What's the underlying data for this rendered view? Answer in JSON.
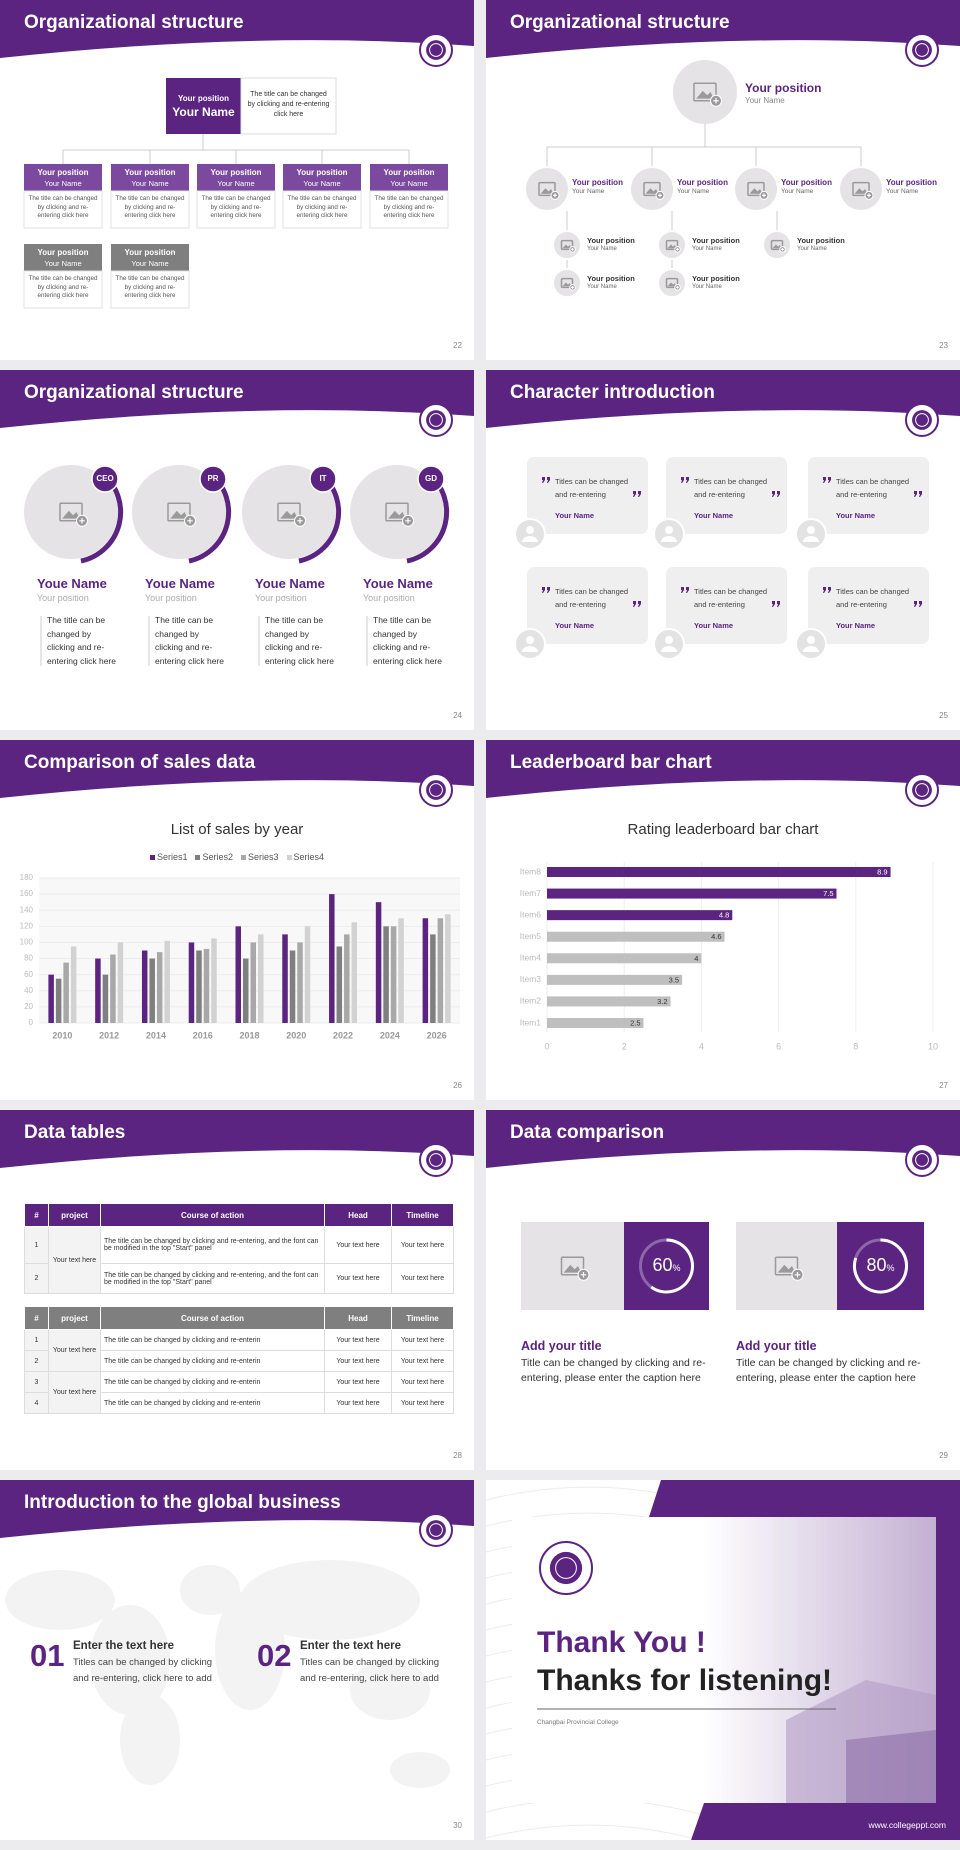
{
  "slides": [
    {
      "number": "22",
      "title": "Organizational structure",
      "top": {
        "position": "Your position",
        "name": "Your Name",
        "text": "The title can be changed by clicking and re-entering click here"
      },
      "boxes": [
        {
          "position": "Your position",
          "name": "Your Name",
          "text": "The title can be changed by clicking and re-entering click here"
        },
        {
          "position": "Your position",
          "name": "Your Name",
          "text": "The title can be changed by clicking and re-entering click here"
        },
        {
          "position": "Your position",
          "name": "Your Name",
          "text": "The title can be changed by clicking and re-entering click here"
        },
        {
          "position": "Your position",
          "name": "Your Name",
          "text": "The title can be changed by clicking and re-entering click here"
        },
        {
          "position": "Your position",
          "name": "Your Name",
          "text": "The title can be changed by clicking and re-entering click here"
        },
        {
          "position": "Your position",
          "name": "Your Name",
          "text": "The title can be changed by clicking and re-entering click here"
        },
        {
          "position": "Your position",
          "name": "Your Name",
          "text": "The title can be changed by clicking and re-entering click here"
        }
      ]
    },
    {
      "number": "23",
      "title": "Organizational structure",
      "top": {
        "position": "Your position",
        "name": "Your Name"
      },
      "nodes": [
        {
          "position": "Your position",
          "name": "Your Name"
        },
        {
          "position": "Your position",
          "name": "Your Name"
        },
        {
          "position": "Your position",
          "name": "Your Name"
        },
        {
          "position": "Your position",
          "name": "Your Name"
        }
      ],
      "subnodes": [
        {
          "position": "Your position",
          "name": "Your Name"
        },
        {
          "position": "Your position",
          "name": "Your Name"
        },
        {
          "position": "Your position",
          "name": "Your Name"
        },
        {
          "position": "Your position",
          "name": "Your Name"
        },
        {
          "position": "Your position",
          "name": "Your Name"
        }
      ]
    },
    {
      "number": "24",
      "title": "Organizational structure",
      "people": [
        {
          "tag": "CEO",
          "name": "Youe Name",
          "position": "Your position",
          "text": "The title can be changed by clicking and re-entering click here"
        },
        {
          "tag": "PR",
          "name": "Youe Name",
          "position": "Your position",
          "text": "The title can be changed by clicking and re-entering click here"
        },
        {
          "tag": "IT",
          "name": "Youe Name",
          "position": "Your position",
          "text": "The title can be changed by clicking and re-entering click here"
        },
        {
          "tag": "GD",
          "name": "Youe Name",
          "position": "Your position",
          "text": "The title can be changed by clicking and re-entering click here"
        }
      ]
    },
    {
      "number": "25",
      "title": "Character introduction",
      "cards": [
        {
          "text": "Titles can be changed and re-entering",
          "name": "Your Name"
        },
        {
          "text": "Titles can be changed and re-entering",
          "name": "Your Name"
        },
        {
          "text": "Titles can be changed and re-entering",
          "name": "Your Name"
        },
        {
          "text": "Titles can be changed and re-entering",
          "name": "Your Name"
        },
        {
          "text": "Titles can be changed and re-entering",
          "name": "Your Name"
        },
        {
          "text": "Titles can be changed and re-entering",
          "name": "Your Name"
        }
      ]
    },
    {
      "number": "26",
      "title": "Comparison of sales data",
      "chart": {
        "type": "bar",
        "title": "List of sales by year",
        "categories": [
          "2010",
          "2012",
          "2014",
          "2016",
          "2018",
          "2020",
          "2022",
          "2024",
          "2026"
        ],
        "series": [
          {
            "name": "Series1",
            "color": "#5b2480",
            "values": [
              60,
              80,
              90,
              100,
              120,
              110,
              160,
              150,
              130
            ]
          },
          {
            "name": "Series2",
            "color": "#7f7f7f",
            "values": [
              55,
              60,
              80,
              90,
              80,
              90,
              95,
              120,
              110
            ]
          },
          {
            "name": "Series3",
            "color": "#a8a8a8",
            "values": [
              75,
              85,
              88,
              92,
              100,
              100,
              110,
              120,
              130
            ]
          },
          {
            "name": "Series4",
            "color": "#d2d2d2",
            "values": [
              95,
              100,
              102,
              105,
              110,
              120,
              125,
              130,
              135
            ]
          }
        ],
        "ylim": [
          0,
          180
        ],
        "yticks": [
          0,
          20,
          40,
          60,
          80,
          100,
          120,
          140,
          160,
          180
        ],
        "grid": true
      }
    },
    {
      "number": "27",
      "title": "Leaderboard bar chart",
      "chart": {
        "type": "hbar",
        "title": "Rating leaderboard bar chart",
        "categories": [
          "Item1",
          "Item2",
          "Item3",
          "Item4",
          "Item5",
          "Item6",
          "Item7",
          "Item8"
        ],
        "values": [
          2.5,
          3.2,
          3.5,
          4,
          4.6,
          4.8,
          7.5,
          8.9
        ],
        "colors": [
          "#bfbfbf",
          "#bfbfbf",
          "#bfbfbf",
          "#bfbfbf",
          "#bfbfbf",
          "#5b2480",
          "#5b2480",
          "#5b2480"
        ],
        "xlim": [
          0,
          10
        ],
        "xticks": [
          0,
          2,
          4,
          6,
          8,
          10
        ],
        "grid": true
      }
    },
    {
      "number": "28",
      "title": "Data tables",
      "tables": [
        {
          "header": [
            "#",
            "project",
            "Course of action",
            "Head",
            "Timeline"
          ],
          "groups": [
            {
              "project": "Your text here",
              "rows": [
                [
                  "1",
                  "The title can be changed by clicking and re-entering, and the font can be modified in the top \"Start\" panel",
                  "Your text here",
                  "Your text here"
                ],
                [
                  "2",
                  "The title can be changed by clicking and re-entering, and the font can be modified in the top \"Start\" panel",
                  "Your text here",
                  "Your text here"
                ]
              ]
            }
          ]
        },
        {
          "header": [
            "#",
            "project",
            "Course of action",
            "Head",
            "Timeline"
          ],
          "groups": [
            {
              "project": "Your text here",
              "rows": [
                [
                  "1",
                  "The title can be changed by clicking and re-enterin",
                  "Your text here",
                  "Your text here"
                ],
                [
                  "2",
                  "The title can be changed by clicking and re-enterin",
                  "Your text here",
                  "Your text here"
                ]
              ]
            },
            {
              "project": "Your text here",
              "rows": [
                [
                  "3",
                  "The title can be changed by clicking and re-enterin",
                  "Your text here",
                  "Your text here"
                ],
                [
                  "4",
                  "The title can be changed by clicking and re-enterin",
                  "Your text here",
                  "Your text here"
                ]
              ]
            }
          ]
        }
      ]
    },
    {
      "number": "29",
      "title": "Data comparison",
      "items": [
        {
          "percent": 60,
          "unit": "%",
          "title": "Add your title",
          "text": "Title can be changed by clicking and re-entering, please enter the caption here"
        },
        {
          "percent": 80,
          "unit": "%",
          "title": "Add your title",
          "text": "Title can be changed by clicking and re-entering, please enter the caption here"
        }
      ]
    },
    {
      "number": "30",
      "title": "Introduction to the global business",
      "items": [
        {
          "index": "01",
          "title": "Enter the text here",
          "text": "Titles can be changed by clicking and re-entering, click here to add"
        },
        {
          "index": "02",
          "title": "Enter the text here",
          "text": "Titles can be changed by clicking and re-entering, click here to add"
        }
      ]
    },
    {
      "title": "Thank You !",
      "subtitle": "Thanks for listening!",
      "college": "Changbai Provincial College",
      "website": "www.collegeppt.com"
    }
  ]
}
